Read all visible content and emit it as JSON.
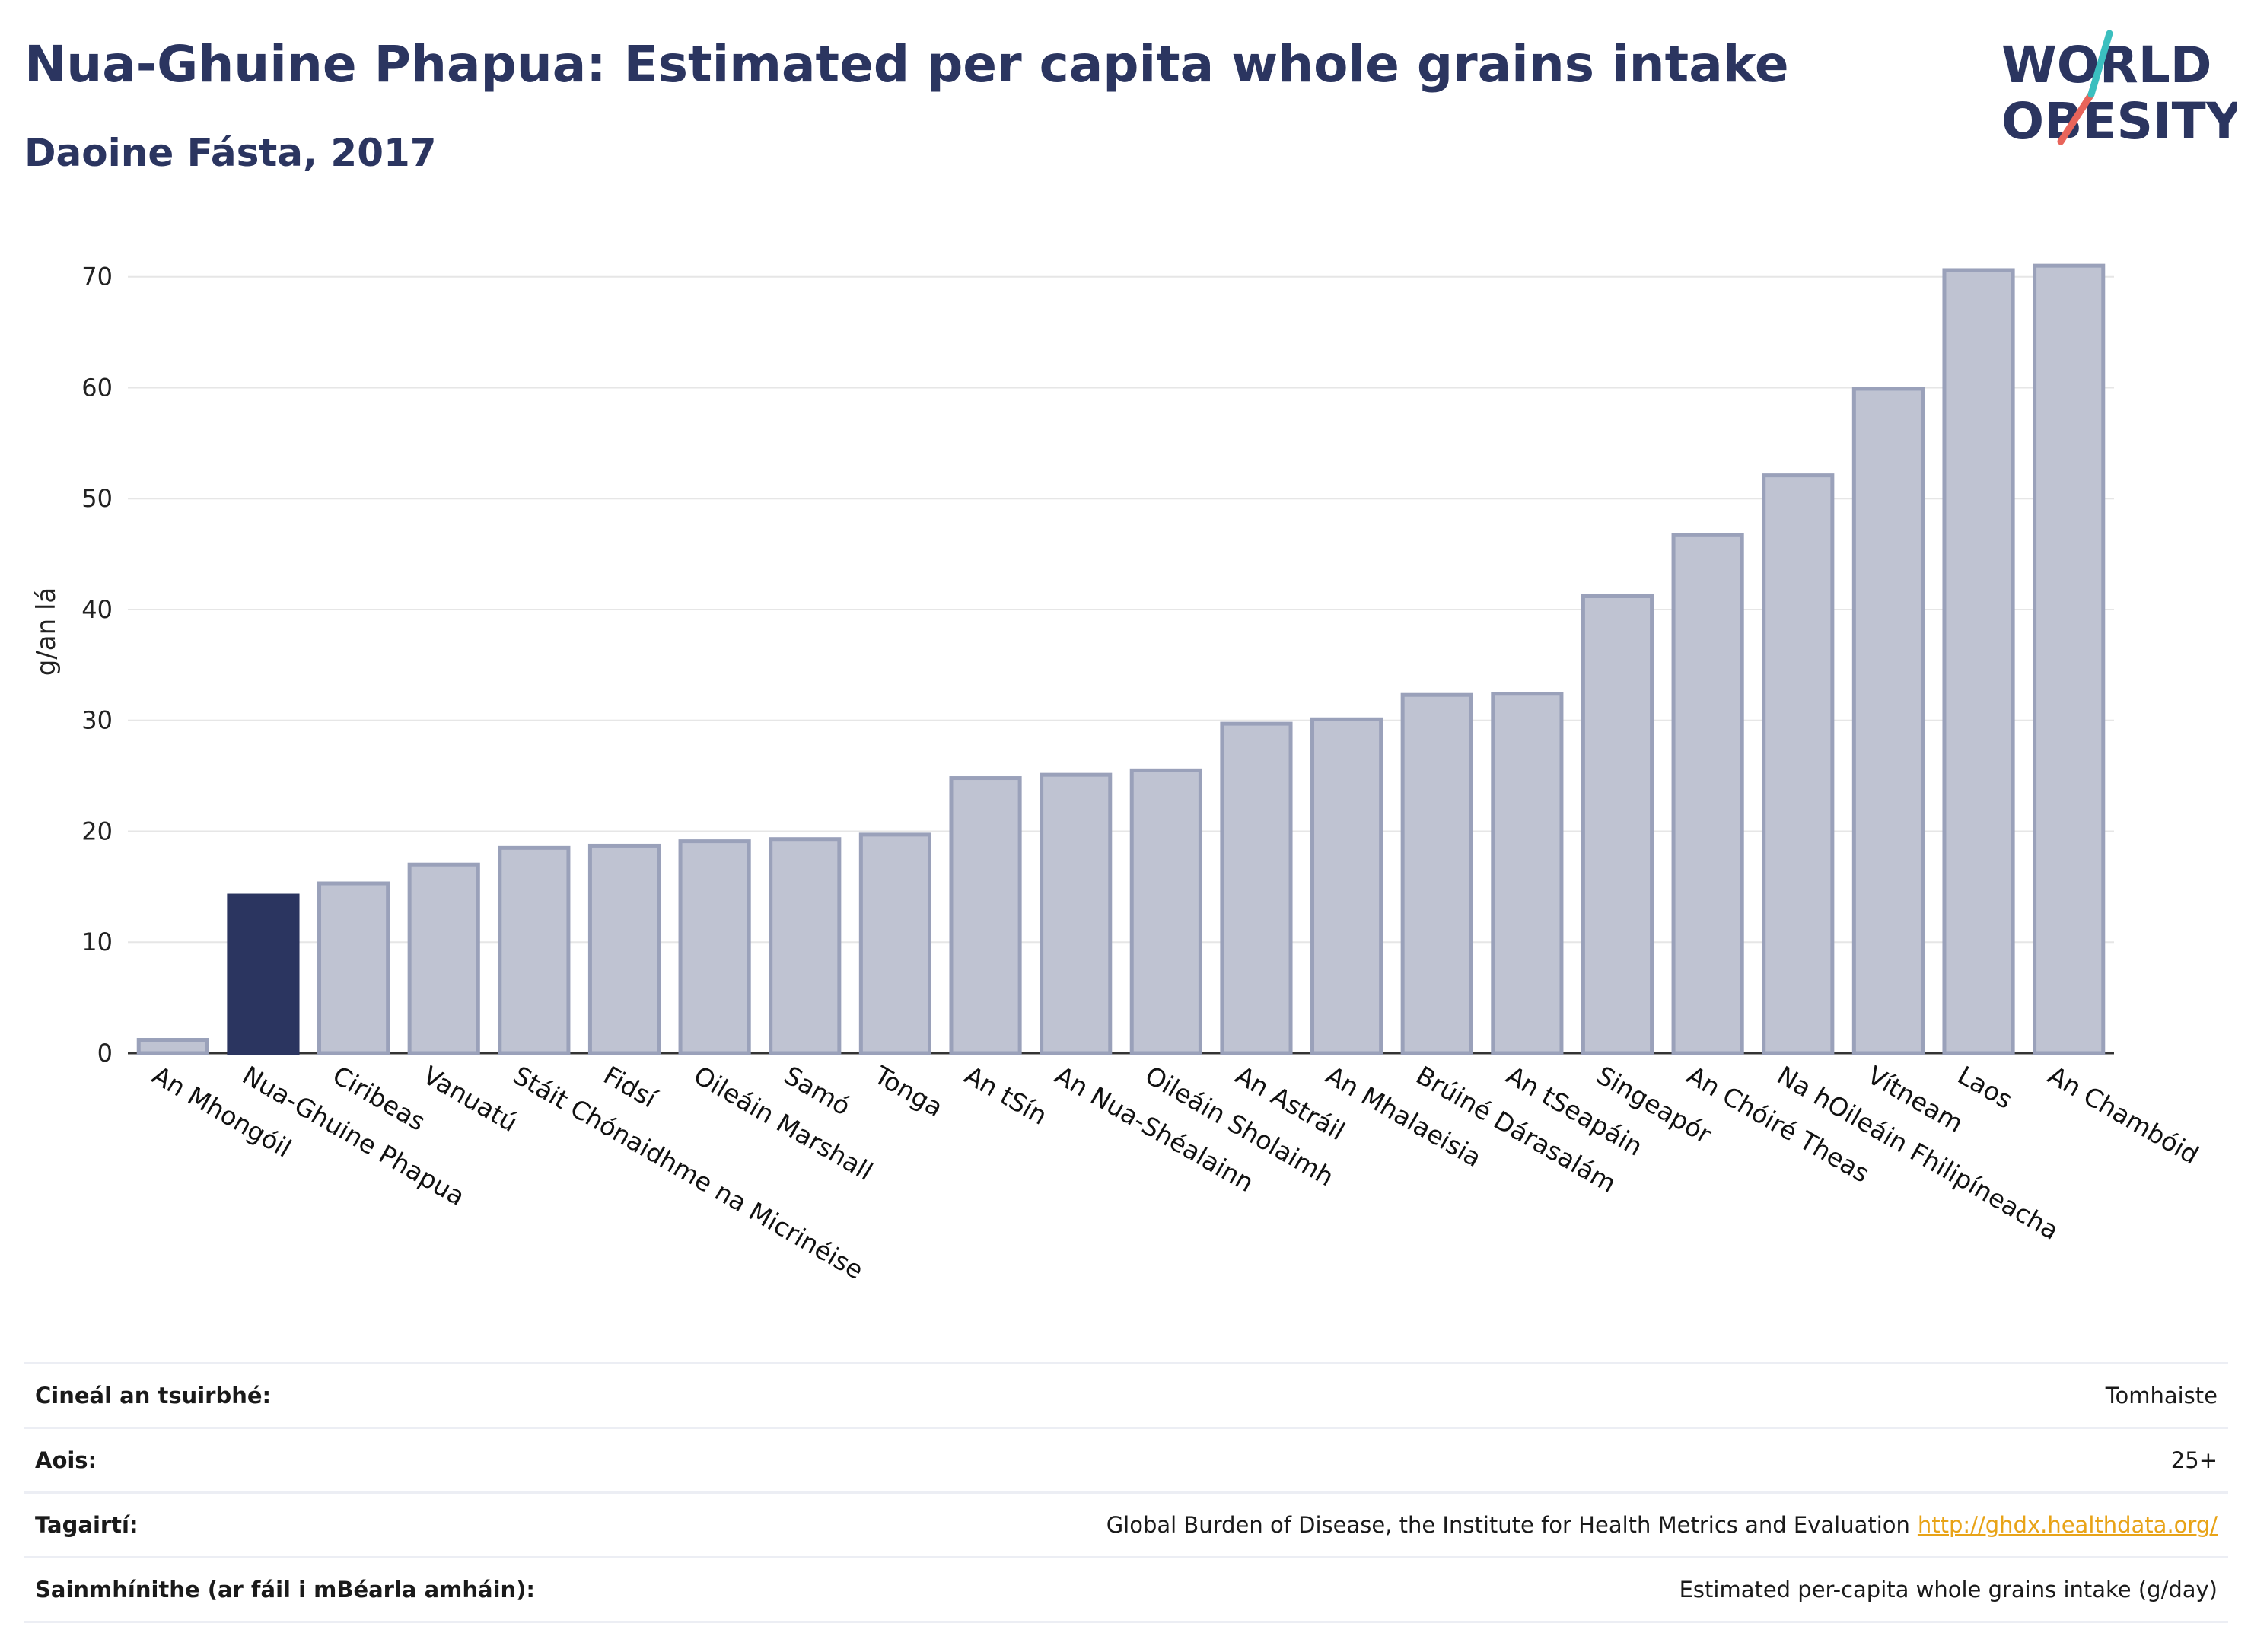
{
  "header": {
    "title": "Nua-Ghuine Phapua: Estimated per capita whole grains intake",
    "subtitle": "Daoine Fásta, 2017"
  },
  "logo": {
    "line1": "WORLD",
    "line2": "OBESITY",
    "slash_colors": [
      "#3bbfbf",
      "#e8645a"
    ],
    "text_color": "#2b3560"
  },
  "colors": {
    "highlight": "#2b3560",
    "bar_fill": "#bfc3d2",
    "bar_stroke": "#9aa1ba",
    "grid": "#e6e6e6"
  },
  "chart_data": {
    "type": "bar",
    "title": "Nua-Ghuine Phapua: Estimated per capita whole grains intake",
    "subtitle": "Daoine Fásta, 2017",
    "xlabel": "",
    "ylabel": "g/an lá",
    "ylim": [
      0,
      73
    ],
    "yticks": [
      0,
      10,
      20,
      30,
      40,
      50,
      60,
      70
    ],
    "grid": true,
    "highlight": "Nua-Ghuine Phapua",
    "categories": [
      "An Mhongóil",
      "Nua-Ghuine Phapua",
      "Ciribeas",
      "Vanuatú",
      "Stáit Chónaidhme na Micrinéise",
      "Fidsí",
      "Oileáin Marshall",
      "Samó",
      "Tonga",
      "An tSín",
      "An Nua-Shéalainn",
      "Oileáin Sholaimh",
      "An Astráil",
      "An Mhalaeisia",
      "Brúiné Dárasalám",
      "An tSeapáin",
      "Singeapór",
      "An Chóiré Theas",
      "Na hOileáin Fhilipíneacha",
      "Vítneam",
      "Laos",
      "An Chambóid"
    ],
    "values": [
      1.2,
      14.2,
      15.3,
      17.0,
      18.5,
      18.7,
      19.1,
      19.3,
      19.7,
      24.8,
      25.1,
      25.5,
      29.7,
      30.1,
      32.3,
      32.4,
      41.2,
      46.7,
      52.1,
      59.9,
      70.6,
      71.0
    ]
  },
  "meta": [
    {
      "key": "Cineál an tsuirbhé:",
      "value": "Tomhaiste",
      "link": ""
    },
    {
      "key": "Aois:",
      "value": "25+",
      "link": ""
    },
    {
      "key": "Tagairtí:",
      "value": "Global Burden of Disease, the Institute for Health Metrics and Evaluation",
      "link": "http://ghdx.healthdata.org/"
    },
    {
      "key": "Sainmhínithe (ar fáil i mBéarla amháin):",
      "value": "Estimated per-capita whole grains intake (g/day)",
      "link": ""
    }
  ]
}
